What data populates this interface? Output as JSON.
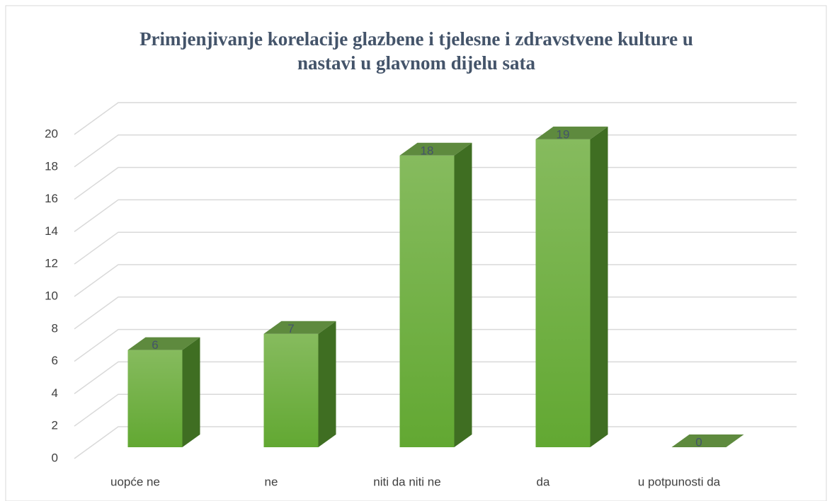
{
  "chart_data": {
    "type": "bar3d",
    "title_lines": [
      "Primjenjivanje korelacije glazbene i tjelesne i zdravstvene kulture u",
      "nastavi u glavnom dijelu sata"
    ],
    "categories": [
      "uopće ne",
      "ne",
      "niti da niti ne",
      "da",
      "u potpunosti da"
    ],
    "values": [
      6,
      7,
      18,
      19,
      0
    ],
    "color": "#6fae3e",
    "ylim": [
      0,
      20
    ],
    "yticks": [
      0,
      2,
      4,
      6,
      8,
      10,
      12,
      14,
      16,
      18,
      20
    ],
    "grid": true
  }
}
